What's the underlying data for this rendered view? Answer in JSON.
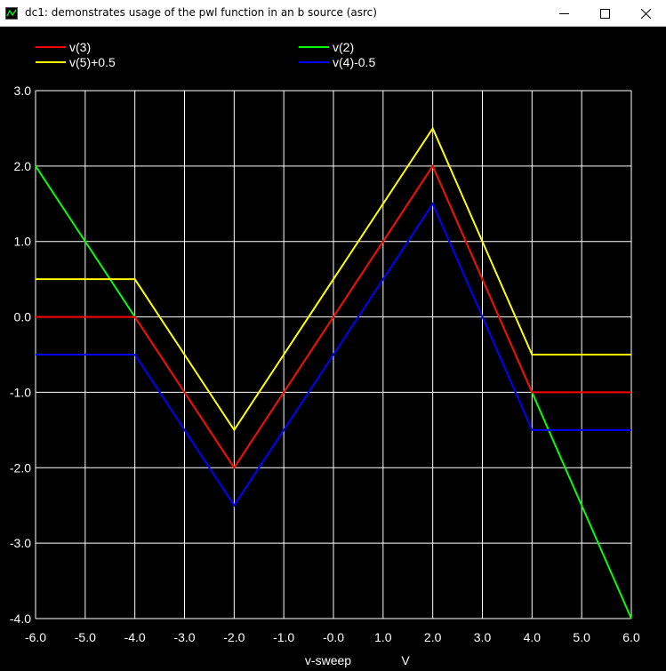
{
  "window": {
    "title": "dc1: demonstrates usage of the pwl function in an b source (asrc)"
  },
  "chart_data": {
    "type": "line",
    "xlabel": "v-sweep",
    "xunit": "V",
    "xlim": [
      -6,
      6
    ],
    "ylim": [
      -4,
      3
    ],
    "grid": true,
    "legend_position": "top",
    "x_ticks": [
      -6,
      -5,
      -4,
      -3,
      -2,
      -1,
      0,
      1,
      2,
      3,
      4,
      5,
      6
    ],
    "x_tick_labels": [
      "-6.0",
      "-5.0",
      "-4.0",
      "-3.0",
      "-2.0",
      "-1.0",
      "-0.0",
      "1.0",
      "2.0",
      "3.0",
      "4.0",
      "5.0",
      "6.0"
    ],
    "y_ticks": [
      3,
      2,
      1,
      0,
      -1,
      -2,
      -3,
      -4
    ],
    "y_tick_labels": [
      "3.0",
      "2.0",
      "1.0",
      "0.0",
      "-1.0",
      "-2.0",
      "-3.0",
      "-4.0"
    ],
    "series": [
      {
        "name": "v(3)",
        "color": "#ff0000",
        "x": [
          -6,
          -4,
          -2,
          2,
          4,
          6
        ],
        "y": [
          0,
          0,
          -2,
          2,
          -1,
          -1
        ]
      },
      {
        "name": "v(2)",
        "color": "#00ff00",
        "x": [
          -6,
          -4,
          -2,
          2,
          4,
          6
        ],
        "y": [
          2,
          0,
          -2,
          2,
          -1,
          -4
        ]
      },
      {
        "name": "v(5)+0.5",
        "color": "#ffff00",
        "x": [
          -6,
          -4,
          -2,
          2,
          4,
          6
        ],
        "y": [
          0.5,
          0.5,
          -1.5,
          2.5,
          -0.5,
          -0.5
        ]
      },
      {
        "name": "v(4)-0.5",
        "color": "#0000ff",
        "x": [
          -6,
          -4,
          -2,
          2,
          4,
          6
        ],
        "y": [
          -0.5,
          -0.5,
          -2.5,
          1.5,
          -1.5,
          -1.5
        ]
      }
    ]
  }
}
